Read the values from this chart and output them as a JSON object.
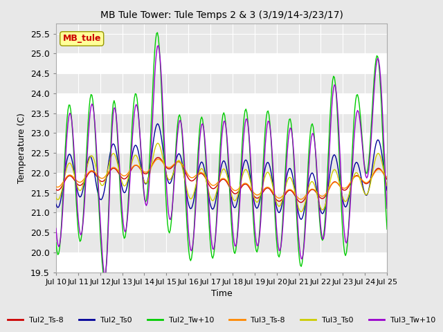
{
  "title": "MB Tule Tower: Tule Temps 2 & 3 (3/19/14-3/23/17)",
  "xlabel": "Time",
  "ylabel": "Temperature (C)",
  "ylim": [
    19.5,
    25.75
  ],
  "yticks": [
    19.5,
    20.0,
    20.5,
    21.0,
    21.5,
    22.0,
    22.5,
    23.0,
    23.5,
    24.0,
    24.5,
    25.0,
    25.5
  ],
  "xlim": [
    0,
    15
  ],
  "xtick_labels": [
    "Jul 10",
    "Jul 11",
    "Jul 12",
    "Jul 13",
    "Jul 14",
    "Jul 15",
    "Jul 16",
    "Jul 17",
    "Jul 18",
    "Jul 19",
    "Jul 20",
    "Jul 21",
    "Jul 22",
    "Jul 23",
    "Jul 24",
    "Jul 25"
  ],
  "xtick_positions": [
    0,
    1,
    2,
    3,
    4,
    5,
    6,
    7,
    8,
    9,
    10,
    11,
    12,
    13,
    14,
    15
  ],
  "annotation_text": "MB_tule",
  "annotation_color": "#cc0000",
  "annotation_bg": "#ffff99",
  "legend_entries": [
    "Tul2_Ts-8",
    "Tul2_Ts0",
    "Tul2_Tw+10",
    "Tul3_Ts-8",
    "Tul3_Ts0",
    "Tul3_Tw+10"
  ],
  "legend_colors": [
    "#cc0000",
    "#000099",
    "#00cc00",
    "#ff8800",
    "#cccc00",
    "#9900cc"
  ],
  "line_width": 1.0,
  "bg_color": "#e8e8e8",
  "grid_color": "#ffffff"
}
